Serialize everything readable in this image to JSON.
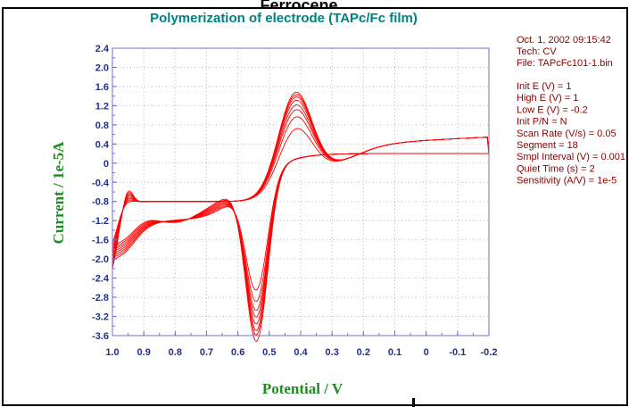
{
  "header_cut_text": "Ferrocene",
  "chart_data": {
    "type": "line",
    "title": "Polymerization of electrode (TAPc/Fc film)",
    "xlabel": "Potential / V",
    "ylabel": "Current / 1e-5A",
    "xlim": [
      1.0,
      -0.2
    ],
    "ylim": [
      -3.6,
      2.4
    ],
    "x_axis_reversed": true,
    "xticks": [
      "1.0",
      "0.9",
      "0.8",
      "0.7",
      "0.6",
      "0.5",
      "0.4",
      "0.3",
      "0.2",
      "0.1",
      "0",
      "-0.1",
      "-0.2"
    ],
    "yticks": [
      "2.4",
      "2.0",
      "1.6",
      "1.2",
      "0.8",
      "0.4",
      "0",
      "-0.4",
      "-0.8",
      "-1.2",
      "-1.6",
      "-2.0",
      "-2.4",
      "-2.8",
      "-3.2",
      "-3.6"
    ],
    "grid": true,
    "line_color": "#ff0000",
    "series": [
      {
        "cycle": 1,
        "ox_peak": {
          "x": 0.42,
          "y": 1.25
        },
        "red_peak": {
          "x": 0.54,
          "y": -2.3
        }
      },
      {
        "cycle": 2,
        "ox_peak": {
          "x": 0.42,
          "y": 1.5
        },
        "red_peak": {
          "x": 0.54,
          "y": -2.55
        }
      },
      {
        "cycle": 3,
        "ox_peak": {
          "x": 0.42,
          "y": 1.65
        },
        "red_peak": {
          "x": 0.54,
          "y": -2.75
        }
      },
      {
        "cycle": 4,
        "ox_peak": {
          "x": 0.42,
          "y": 1.75
        },
        "red_peak": {
          "x": 0.54,
          "y": -2.9
        }
      },
      {
        "cycle": 5,
        "ox_peak": {
          "x": 0.42,
          "y": 1.85
        },
        "red_peak": {
          "x": 0.54,
          "y": -3.05
        }
      },
      {
        "cycle": 6,
        "ox_peak": {
          "x": 0.42,
          "y": 1.92
        },
        "red_peak": {
          "x": 0.54,
          "y": -3.2
        }
      },
      {
        "cycle": 7,
        "ox_peak": {
          "x": 0.42,
          "y": 1.97
        },
        "red_peak": {
          "x": 0.54,
          "y": -3.3
        }
      },
      {
        "cycle": 8,
        "ox_peak": {
          "x": 0.42,
          "y": 2.02
        },
        "red_peak": {
          "x": 0.54,
          "y": -3.45
        }
      }
    ]
  },
  "info_panel": [
    "Oct. 1, 2002   09:15:42",
    "Tech: CV",
    "File: TAPcFc101-1.bin",
    "Init E (V) = 1",
    "High E (V) = 1",
    "Low E (V) = -0.2",
    "Init P/N = N",
    "Scan Rate (V/s) = 0.05",
    "Segment = 18",
    "Smpl Interval (V) = 0.001",
    "Quiet Time (s) = 2",
    "Sensitivity (A/V) = 1e-5"
  ],
  "colors": {
    "frame": "#000000",
    "plot_border": "#7070d0",
    "grid": "#b8b8b8",
    "tick_text": "#1f2f8f",
    "axis_label": "#1e8c1e",
    "title": "#008080",
    "curve": "#ff0000",
    "info_text": "#8b0000"
  }
}
